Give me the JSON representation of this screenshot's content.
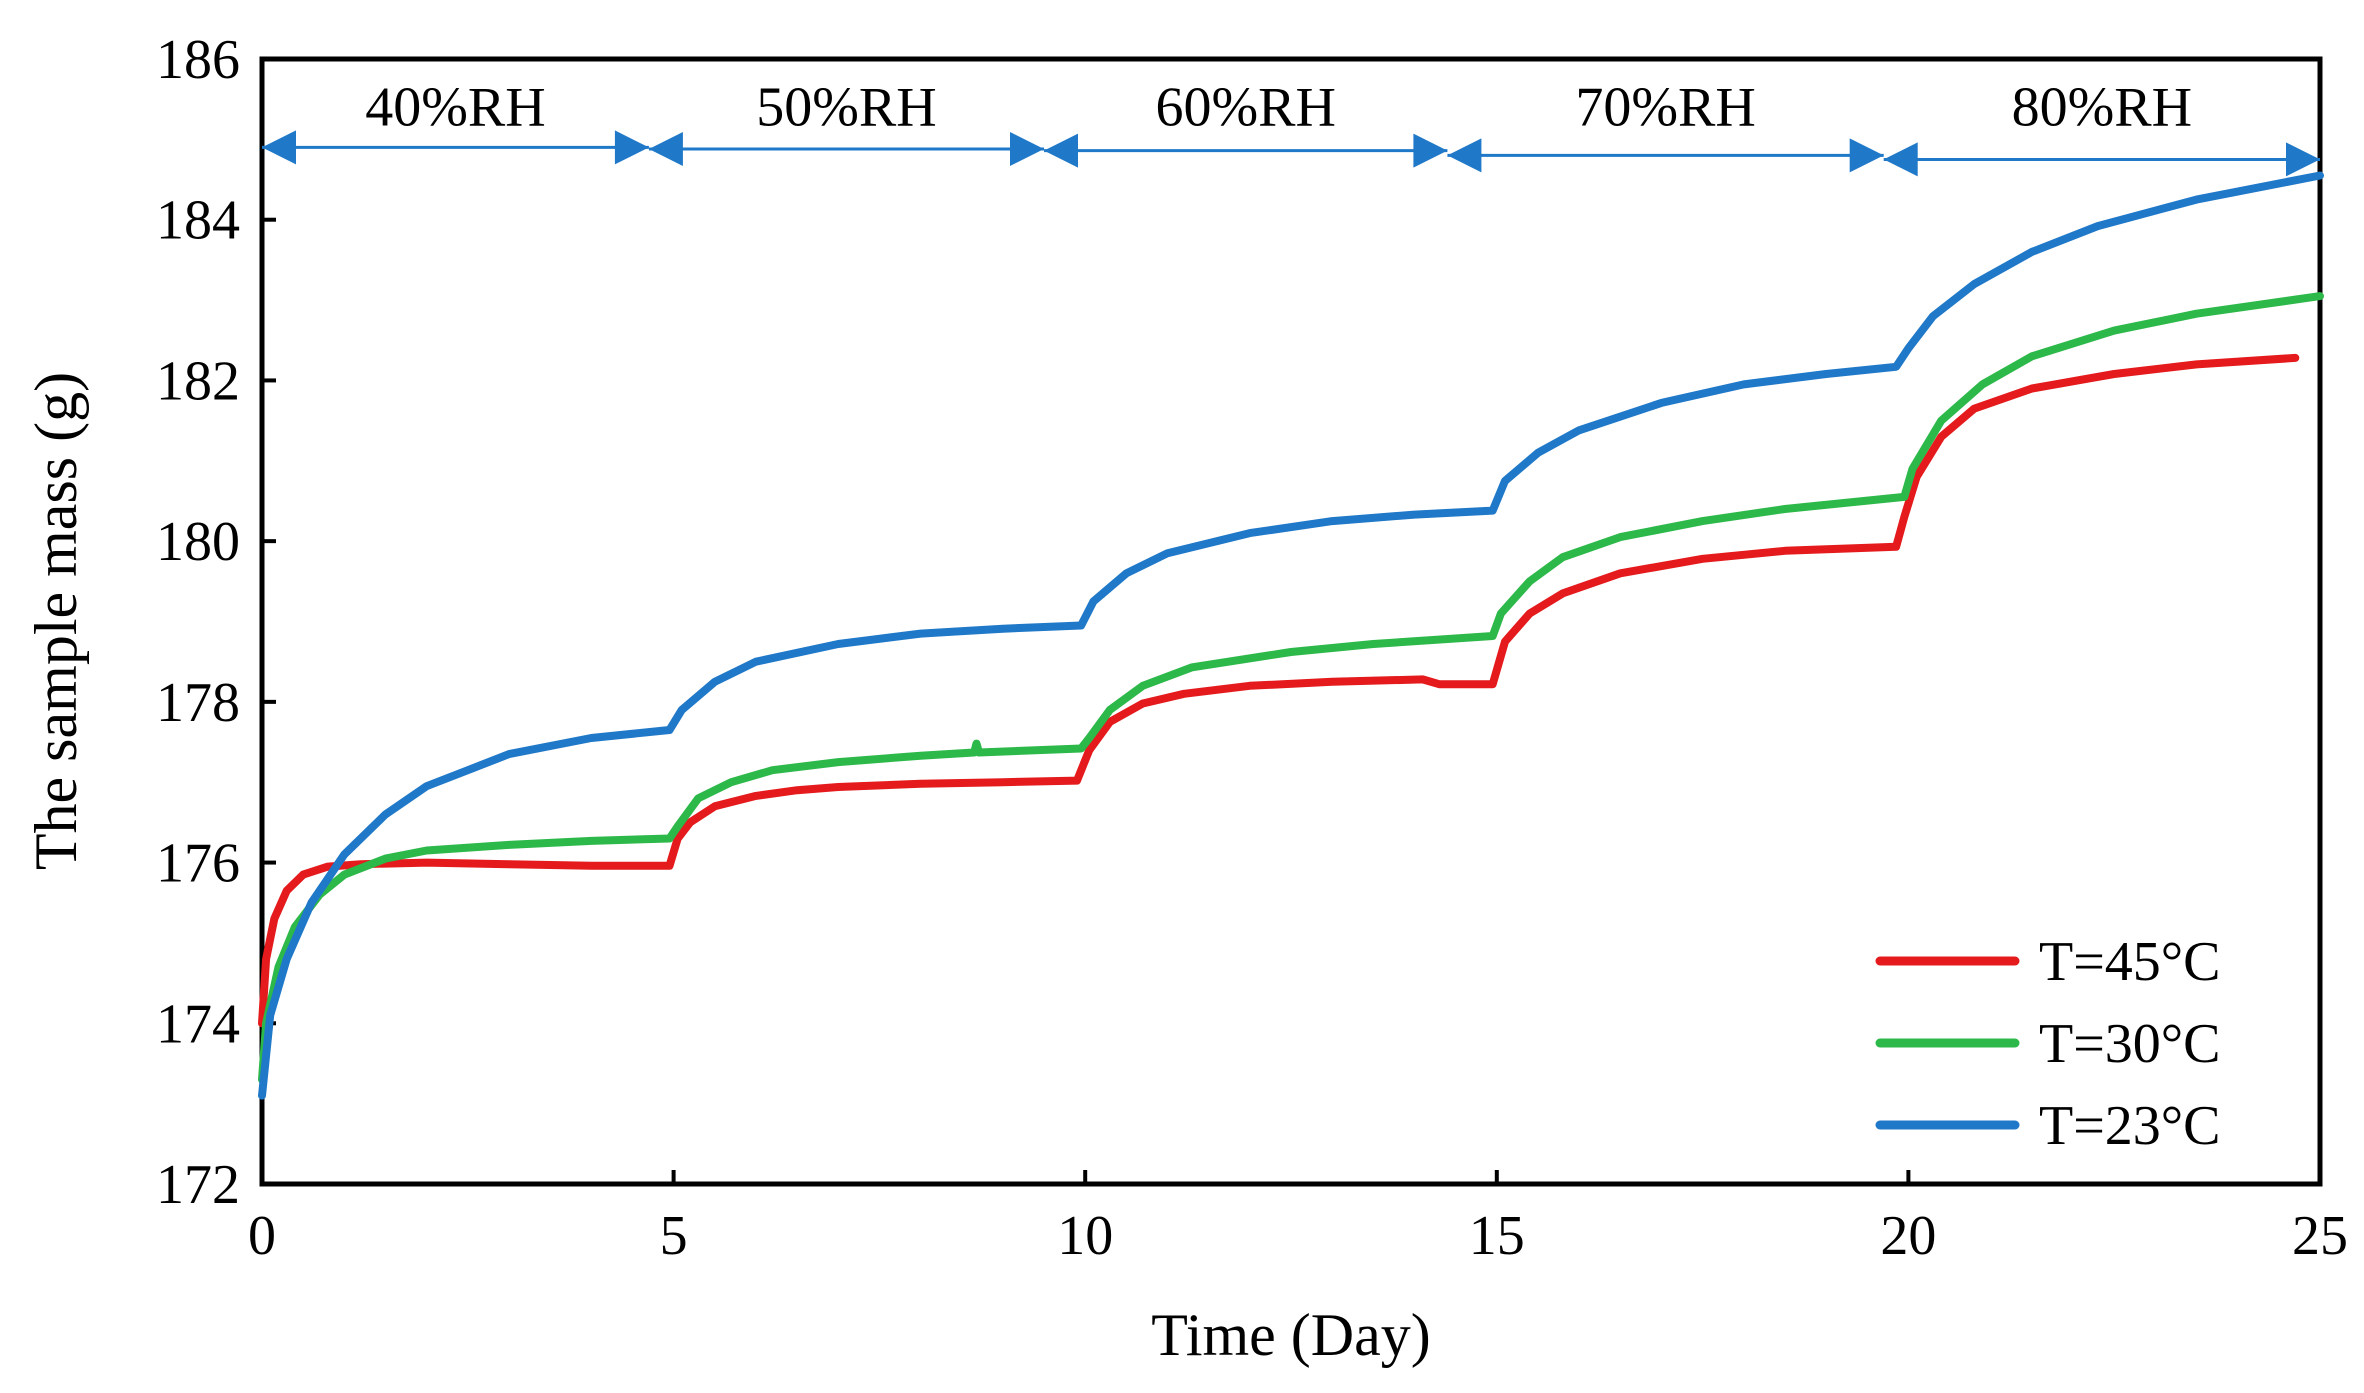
{
  "chart_data": {
    "type": "line",
    "title": "",
    "xlabel": "Time (Day)",
    "ylabel": "The sample mass (g)",
    "xlim": [
      0,
      25
    ],
    "ylim": [
      172,
      186
    ],
    "xticks": [
      0,
      5,
      10,
      15,
      20,
      25
    ],
    "yticks": [
      172,
      174,
      176,
      178,
      180,
      182,
      184,
      186
    ],
    "grid": false,
    "legend_position": "bottom-right",
    "series": [
      {
        "name": "T=45°C",
        "color": "#e41a1c",
        "points": [
          [
            0,
            174.0
          ],
          [
            0.05,
            174.8
          ],
          [
            0.15,
            175.3
          ],
          [
            0.3,
            175.65
          ],
          [
            0.5,
            175.85
          ],
          [
            0.8,
            175.95
          ],
          [
            1.2,
            175.98
          ],
          [
            2,
            176.0
          ],
          [
            3,
            175.98
          ],
          [
            4,
            175.96
          ],
          [
            4.95,
            175.96
          ],
          [
            5.05,
            176.3
          ],
          [
            5.2,
            176.5
          ],
          [
            5.5,
            176.7
          ],
          [
            6,
            176.83
          ],
          [
            6.5,
            176.9
          ],
          [
            7,
            176.94
          ],
          [
            8,
            176.98
          ],
          [
            9,
            177.0
          ],
          [
            9.9,
            177.02
          ],
          [
            10.05,
            177.4
          ],
          [
            10.3,
            177.75
          ],
          [
            10.7,
            177.98
          ],
          [
            11.2,
            178.1
          ],
          [
            12,
            178.2
          ],
          [
            13,
            178.25
          ],
          [
            14.1,
            178.28
          ],
          [
            14.3,
            178.22
          ],
          [
            14.95,
            178.22
          ],
          [
            15.1,
            178.75
          ],
          [
            15.4,
            179.1
          ],
          [
            15.8,
            179.35
          ],
          [
            16.5,
            179.6
          ],
          [
            17.5,
            179.78
          ],
          [
            18.5,
            179.88
          ],
          [
            19.85,
            179.93
          ],
          [
            19.95,
            180.3
          ],
          [
            20.1,
            180.8
          ],
          [
            20.4,
            181.3
          ],
          [
            20.8,
            181.65
          ],
          [
            21.5,
            181.9
          ],
          [
            22.5,
            182.08
          ],
          [
            23.5,
            182.2
          ],
          [
            24.7,
            182.28
          ]
        ]
      },
      {
        "name": "T=30°C",
        "color": "#2db84a",
        "points": [
          [
            0,
            173.3
          ],
          [
            0.05,
            174.0
          ],
          [
            0.2,
            174.7
          ],
          [
            0.4,
            175.2
          ],
          [
            0.7,
            175.6
          ],
          [
            1.0,
            175.85
          ],
          [
            1.5,
            176.05
          ],
          [
            2,
            176.15
          ],
          [
            3,
            176.22
          ],
          [
            4,
            176.27
          ],
          [
            4.95,
            176.3
          ],
          [
            5.05,
            176.45
          ],
          [
            5.3,
            176.8
          ],
          [
            5.7,
            177.0
          ],
          [
            6.2,
            177.15
          ],
          [
            7,
            177.25
          ],
          [
            8,
            177.33
          ],
          [
            8.65,
            177.37
          ],
          [
            8.68,
            177.48
          ],
          [
            8.71,
            177.37
          ],
          [
            9.95,
            177.42
          ],
          [
            10.05,
            177.55
          ],
          [
            10.3,
            177.9
          ],
          [
            10.7,
            178.2
          ],
          [
            11.3,
            178.43
          ],
          [
            12.5,
            178.62
          ],
          [
            13.5,
            178.72
          ],
          [
            14.95,
            178.82
          ],
          [
            15.05,
            179.1
          ],
          [
            15.4,
            179.5
          ],
          [
            15.8,
            179.8
          ],
          [
            16.5,
            180.05
          ],
          [
            17.5,
            180.25
          ],
          [
            18.5,
            180.4
          ],
          [
            19.95,
            180.55
          ],
          [
            20.05,
            180.9
          ],
          [
            20.4,
            181.5
          ],
          [
            20.9,
            181.95
          ],
          [
            21.5,
            182.3
          ],
          [
            22.5,
            182.62
          ],
          [
            23.5,
            182.83
          ],
          [
            25.0,
            183.05
          ]
        ]
      },
      {
        "name": "T=23°C",
        "color": "#1f78c8",
        "points": [
          [
            0,
            173.1
          ],
          [
            0.1,
            174.1
          ],
          [
            0.3,
            174.8
          ],
          [
            0.6,
            175.5
          ],
          [
            1.0,
            176.1
          ],
          [
            1.5,
            176.6
          ],
          [
            2,
            176.95
          ],
          [
            2.5,
            177.15
          ],
          [
            3,
            177.35
          ],
          [
            4,
            177.55
          ],
          [
            4.95,
            177.65
          ],
          [
            5.1,
            177.9
          ],
          [
            5.5,
            178.25
          ],
          [
            6,
            178.5
          ],
          [
            7,
            178.72
          ],
          [
            8,
            178.85
          ],
          [
            9,
            178.91
          ],
          [
            9.95,
            178.95
          ],
          [
            10.1,
            179.25
          ],
          [
            10.5,
            179.6
          ],
          [
            11,
            179.85
          ],
          [
            12,
            180.1
          ],
          [
            13,
            180.25
          ],
          [
            14,
            180.33
          ],
          [
            14.95,
            180.38
          ],
          [
            15.1,
            180.75
          ],
          [
            15.5,
            181.1
          ],
          [
            16,
            181.38
          ],
          [
            17,
            181.72
          ],
          [
            18,
            181.95
          ],
          [
            19,
            182.08
          ],
          [
            19.85,
            182.17
          ],
          [
            20.0,
            182.4
          ],
          [
            20.3,
            182.8
          ],
          [
            20.8,
            183.2
          ],
          [
            21.5,
            183.6
          ],
          [
            22.3,
            183.92
          ],
          [
            23.5,
            184.25
          ],
          [
            25.0,
            184.55
          ]
        ]
      }
    ],
    "humidity_stages": [
      {
        "label": "40%RH",
        "start": 0,
        "end": 4.7,
        "y": 184.9
      },
      {
        "label": "50%RH",
        "start": 4.7,
        "end": 9.5,
        "y": 184.88
      },
      {
        "label": "60%RH",
        "start": 9.5,
        "end": 14.4,
        "y": 184.86
      },
      {
        "label": "70%RH",
        "start": 14.4,
        "end": 19.7,
        "y": 184.8
      },
      {
        "label": "80%RH",
        "start": 19.7,
        "end": 25.0,
        "y": 184.75
      }
    ],
    "stage_label_y": 185.42,
    "arrow_color": "#1f78c8"
  }
}
